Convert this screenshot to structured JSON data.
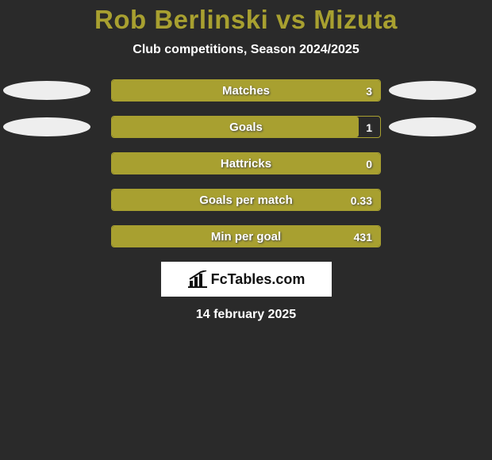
{
  "title": "Rob Berlinski vs Mizuta",
  "subtitle": "Club competitions, Season 2024/2025",
  "title_color": "#a8a030",
  "bar_fill_color": "#a8a030",
  "bar_border_color": "#a8a030",
  "background_color": "#2a2a2a",
  "text_color": "#ffffff",
  "ellipse_color": "#eeeeee",
  "stats": [
    {
      "label": "Matches",
      "value": "3",
      "fill_pct": 100,
      "show_ellipses": true
    },
    {
      "label": "Goals",
      "value": "1",
      "fill_pct": 92,
      "show_ellipses": true
    },
    {
      "label": "Hattricks",
      "value": "0",
      "fill_pct": 100,
      "show_ellipses": false
    },
    {
      "label": "Goals per match",
      "value": "0.33",
      "fill_pct": 100,
      "show_ellipses": false
    },
    {
      "label": "Min per goal",
      "value": "431",
      "fill_pct": 100,
      "show_ellipses": false
    }
  ],
  "logo_text": "FcTables.com",
  "date": "14 february 2025"
}
